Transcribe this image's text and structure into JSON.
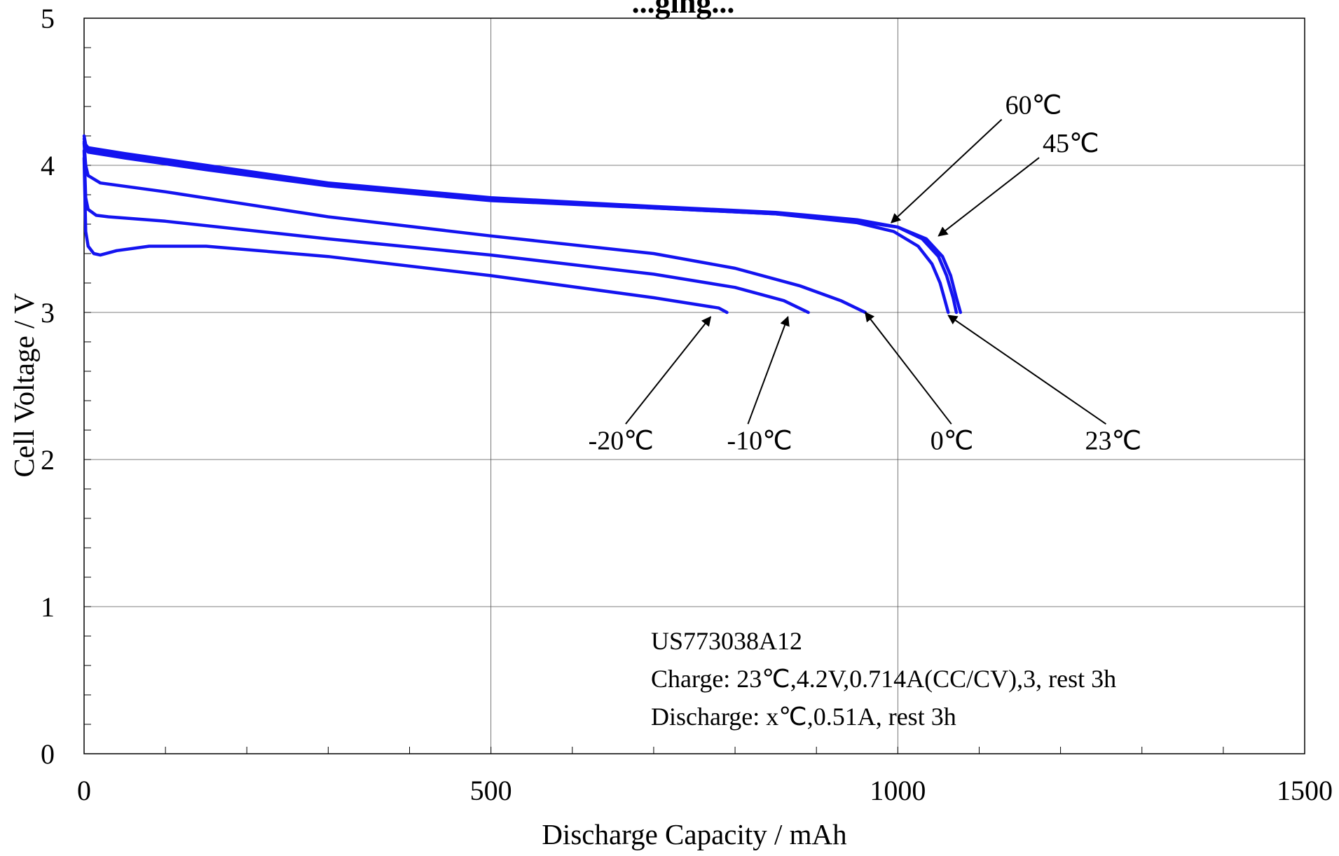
{
  "chart_data": {
    "type": "line",
    "title_fragment": "...ging...",
    "xlabel": "Discharge Capacity / mAh",
    "ylabel": "Cell Voltage / V",
    "xlim": [
      0,
      1500
    ],
    "ylim": [
      0,
      5
    ],
    "x_ticks": [
      "0",
      "500",
      "1000",
      "1500"
    ],
    "y_ticks": [
      "0",
      "1",
      "2",
      "3",
      "4",
      "5"
    ],
    "grid": true,
    "line_color": "#1414f0",
    "series": [
      {
        "name": "60℃",
        "x": [
          0,
          2,
          5,
          50,
          150,
          300,
          500,
          700,
          850,
          950,
          1000,
          1030,
          1050,
          1060,
          1068,
          1072
        ],
        "y": [
          4.2,
          4.14,
          4.12,
          4.08,
          4.0,
          3.88,
          3.78,
          3.72,
          3.68,
          3.63,
          3.58,
          3.5,
          3.38,
          3.25,
          3.1,
          3.0
        ]
      },
      {
        "name": "45℃",
        "x": [
          0,
          2,
          5,
          50,
          150,
          300,
          500,
          700,
          850,
          950,
          1000,
          1035,
          1055,
          1065,
          1072,
          1077
        ],
        "y": [
          4.18,
          4.13,
          4.11,
          4.07,
          3.99,
          3.87,
          3.77,
          3.71,
          3.67,
          3.62,
          3.58,
          3.5,
          3.38,
          3.25,
          3.1,
          3.0
        ]
      },
      {
        "name": "23℃",
        "x": [
          0,
          2,
          5,
          50,
          150,
          300,
          500,
          700,
          850,
          950,
          995,
          1025,
          1042,
          1052,
          1058,
          1062
        ],
        "y": [
          4.16,
          4.11,
          4.09,
          4.05,
          3.97,
          3.86,
          3.76,
          3.71,
          3.67,
          3.61,
          3.55,
          3.45,
          3.33,
          3.2,
          3.08,
          3.0
        ]
      },
      {
        "name": "0℃",
        "x": [
          0,
          2,
          5,
          20,
          100,
          300,
          500,
          700,
          800,
          880,
          930,
          960
        ],
        "y": [
          4.15,
          4.0,
          3.93,
          3.88,
          3.82,
          3.65,
          3.52,
          3.4,
          3.3,
          3.18,
          3.08,
          3.0
        ]
      },
      {
        "name": "-10℃",
        "x": [
          0,
          2,
          5,
          15,
          30,
          100,
          300,
          500,
          700,
          800,
          860,
          890
        ],
        "y": [
          4.1,
          3.78,
          3.7,
          3.66,
          3.65,
          3.62,
          3.5,
          3.39,
          3.26,
          3.17,
          3.08,
          3.0
        ]
      },
      {
        "name": "-20℃",
        "x": [
          0,
          2,
          5,
          12,
          20,
          40,
          80,
          150,
          300,
          500,
          700,
          780,
          790
        ],
        "y": [
          4.05,
          3.55,
          3.45,
          3.4,
          3.39,
          3.42,
          3.45,
          3.45,
          3.38,
          3.25,
          3.1,
          3.03,
          3.0
        ]
      }
    ],
    "annotations": [
      {
        "text": "60℃",
        "tx": 1132,
        "ty": 4.35,
        "ax": 992,
        "ay": 3.61,
        "anchor": "start"
      },
      {
        "text": "45℃",
        "tx": 1178,
        "ty": 4.09,
        "ax": 1050,
        "ay": 3.52,
        "anchor": "start"
      },
      {
        "text": "-20℃",
        "tx": 700,
        "ty": 2.07,
        "ax": 770,
        "ay": 2.97,
        "anchor": "end"
      },
      {
        "text": "-10℃",
        "tx": 790,
        "ty": 2.07,
        "ax": 865,
        "ay": 2.97,
        "anchor": "start"
      },
      {
        "text": "0℃",
        "tx": 1040,
        "ty": 2.07,
        "ax": 960,
        "ay": 3.0,
        "anchor": "start"
      },
      {
        "text": "23℃",
        "tx": 1230,
        "ty": 2.07,
        "ax": 1062,
        "ay": 2.98,
        "anchor": "start"
      }
    ],
    "notes": [
      "US773038A12",
      "Charge: 23℃,4.2V,0.714A(CC/CV),3, rest 3h",
      "Discharge: x℃,0.51A, rest 3h"
    ]
  }
}
